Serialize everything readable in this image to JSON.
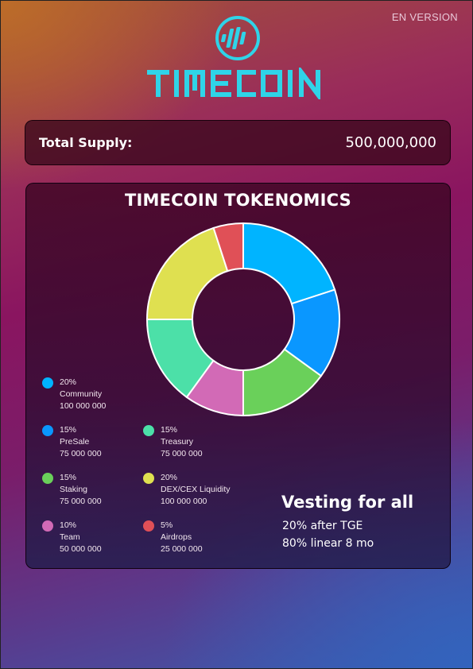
{
  "header": {
    "language": "EN VERSION",
    "brand": "TIMECOIN",
    "accent": "#2fd4e8"
  },
  "supply": {
    "label": "Total Supply:",
    "value": "500,000,000"
  },
  "tokenomics": {
    "title": "TIMECOIN TOKENOMICS"
  },
  "chart_data": {
    "type": "pie",
    "title": "TIMECOIN TOKENOMICS",
    "donut": true,
    "slices": [
      {
        "name": "Community",
        "percent_label": "20%",
        "amount": "100 000 000",
        "value": 20,
        "color": "#00b4ff"
      },
      {
        "name": "PreSale",
        "percent_label": "15%",
        "amount": "75 000 000",
        "value": 15,
        "color": "#0a97ff"
      },
      {
        "name": "Staking",
        "percent_label": "15%",
        "amount": "75 000 000",
        "value": 15,
        "color": "#6ad05a"
      },
      {
        "name": "Team",
        "percent_label": "10%",
        "amount": "50 000 000",
        "value": 10,
        "color": "#d26ab6"
      },
      {
        "name": "Treasury",
        "percent_label": "15%",
        "amount": "75 000 000",
        "value": 15,
        "color": "#4ce0a8"
      },
      {
        "name": "DEX/CEX Liquidity",
        "percent_label": "20%",
        "amount": "100 000 000",
        "value": 20,
        "color": "#dfe050"
      },
      {
        "name": "Airdrops",
        "percent_label": "5%",
        "amount": "25 000 000",
        "value": 5,
        "color": "#e05057"
      }
    ]
  },
  "vesting": {
    "title": "Vesting for all",
    "line1": "20% after TGE",
    "line2": "80% linear 8 mo"
  }
}
